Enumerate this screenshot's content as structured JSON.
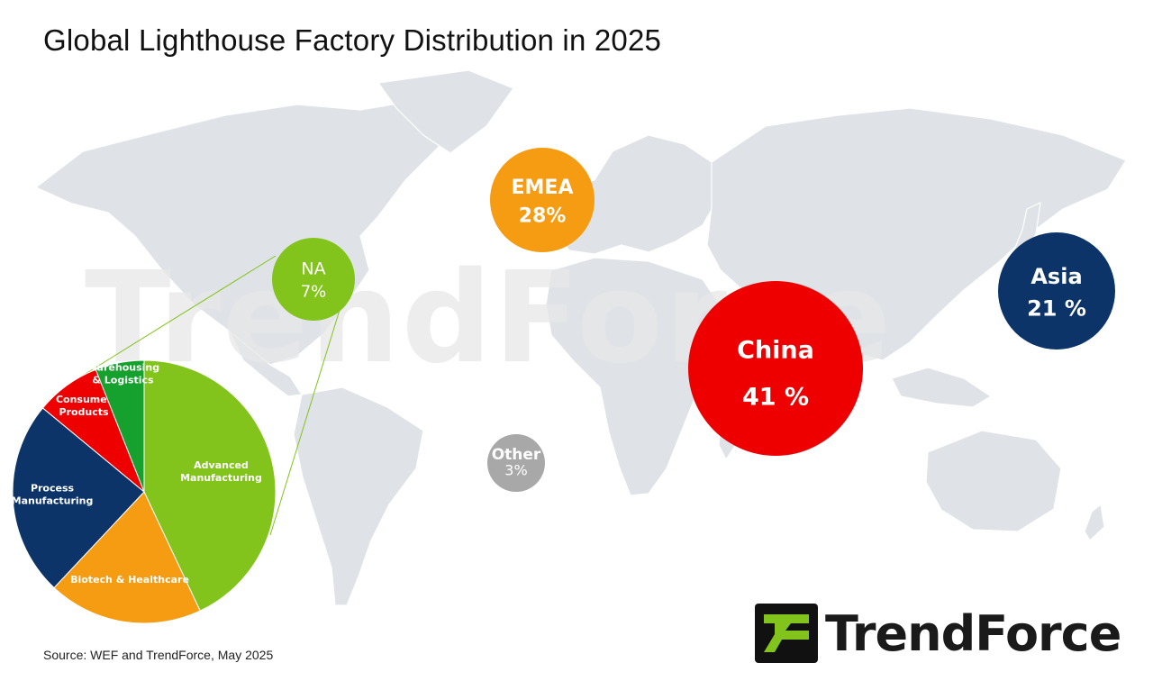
{
  "title": "Global Lighthouse Factory Distribution in 2025",
  "source": "Source: WEF and TrendForce, May 2025",
  "brand": {
    "name": "TrendForce",
    "watermark": "TrendForce"
  },
  "colors": {
    "na": "#82c31c",
    "emea": "#f59c12",
    "china": "#ee0000",
    "asia": "#0c3469",
    "other": "#a8a8a8",
    "map": "#dfe3e7"
  },
  "chart_data": [
    {
      "type": "bubble",
      "title": "Global Lighthouse Factory Distribution in 2025",
      "unit": "%",
      "points": [
        {
          "name": "NA",
          "label": "7%",
          "value": 7,
          "color": "#82c31c"
        },
        {
          "name": "EMEA",
          "label": "28%",
          "value": 28,
          "color": "#f59c12"
        },
        {
          "name": "China",
          "label": "41 %",
          "value": 41,
          "color": "#ee0000"
        },
        {
          "name": "Asia",
          "label": "21 %",
          "value": 21,
          "color": "#0c3469"
        },
        {
          "name": "Other",
          "label": "3%",
          "value": 3,
          "color": "#a8a8a8"
        }
      ]
    },
    {
      "type": "pie",
      "unit": "%",
      "slices": [
        {
          "name": "Advanced Manufacturing",
          "lines": [
            "Advanced",
            "Manufacturing"
          ],
          "value": 43,
          "color": "#82c31c"
        },
        {
          "name": "Biotech & Healthcare",
          "lines": [
            "Biotech & Healthcare"
          ],
          "value": 19,
          "color": "#f59c12"
        },
        {
          "name": "Process Manufacturing",
          "lines": [
            "Process",
            "Manufacturing"
          ],
          "value": 24,
          "color": "#0c3469"
        },
        {
          "name": "Consumer Products",
          "lines": [
            "Consumer",
            "Products"
          ],
          "value": 8,
          "color": "#ee0000"
        },
        {
          "name": "Warehousing & Logistics",
          "lines": [
            "Warehousing",
            "& Logistics"
          ],
          "value": 6,
          "color": "#16a12e"
        }
      ]
    }
  ]
}
